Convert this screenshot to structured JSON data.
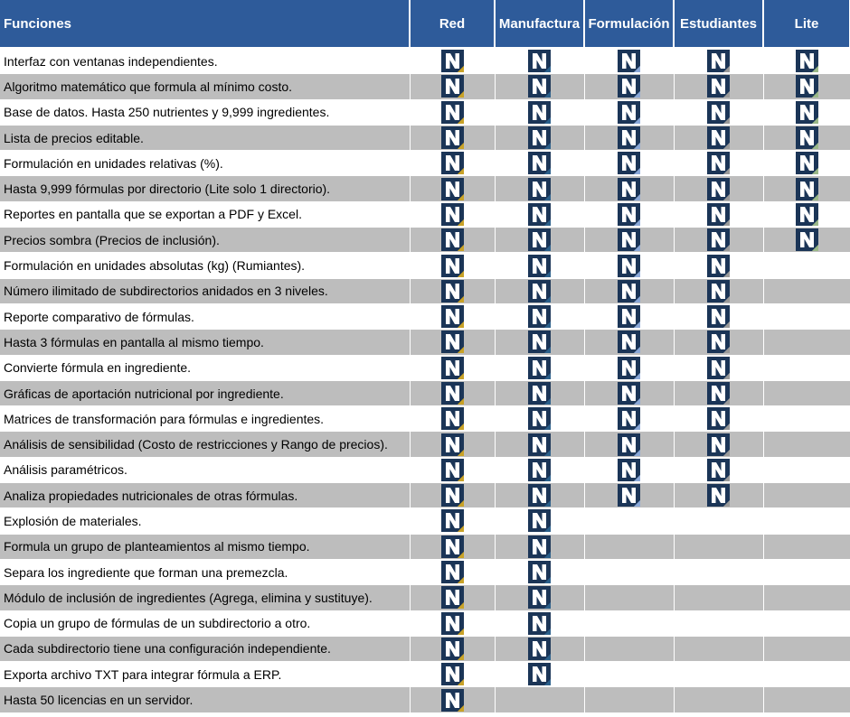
{
  "header": {
    "features_label": "Funciones",
    "packages": [
      "Red",
      "Manufactura",
      "Formulación",
      "Estudiantes",
      "Lite"
    ]
  },
  "colors": {
    "header_bg": "#2e5b9a",
    "row_alt_bg": "#bdbdbd",
    "icon_dark": "#1b3557",
    "icon_accent": [
      "#c9a227",
      "#2a5f8a",
      "#8aa8d8",
      "#9a9a9a",
      "#9bb888"
    ]
  },
  "icons": {
    "check": "n-logo-icon"
  },
  "rows": [
    {
      "label": "Interfaz con ventanas independientes.",
      "included": [
        true,
        true,
        true,
        true,
        true
      ]
    },
    {
      "label": "Algoritmo matemático que formula al mínimo costo.",
      "included": [
        true,
        true,
        true,
        true,
        true
      ]
    },
    {
      "label": "Base de datos. Hasta 250 nutrientes y 9,999 ingredientes.",
      "included": [
        true,
        true,
        true,
        true,
        true
      ]
    },
    {
      "label": "Lista de precios editable.",
      "included": [
        true,
        true,
        true,
        true,
        true
      ]
    },
    {
      "label": "Formulación en unidades relativas (%).",
      "included": [
        true,
        true,
        true,
        true,
        true
      ]
    },
    {
      "label": "Hasta 9,999 fórmulas por directorio (Lite solo 1 directorio).",
      "included": [
        true,
        true,
        true,
        true,
        true
      ]
    },
    {
      "label": "Reportes en pantalla que se exportan a PDF y Excel.",
      "included": [
        true,
        true,
        true,
        true,
        true
      ]
    },
    {
      "label": "Precios sombra (Precios de inclusión).",
      "included": [
        true,
        true,
        true,
        true,
        true
      ]
    },
    {
      "label": "Formulación en unidades absolutas (kg) (Rumiantes).",
      "included": [
        true,
        true,
        true,
        true,
        false
      ]
    },
    {
      "label": "Número ilimitado de subdirectorios anidados en 3 niveles.",
      "included": [
        true,
        true,
        true,
        true,
        false
      ]
    },
    {
      "label": "Reporte comparativo de fórmulas.",
      "included": [
        true,
        true,
        true,
        true,
        false
      ]
    },
    {
      "label": "Hasta 3 fórmulas en pantalla al mismo tiempo.",
      "included": [
        true,
        true,
        true,
        true,
        false
      ]
    },
    {
      "label": "Convierte fórmula en ingrediente.",
      "included": [
        true,
        true,
        true,
        true,
        false
      ]
    },
    {
      "label": "Gráficas de aportación nutricional por ingrediente.",
      "included": [
        true,
        true,
        true,
        true,
        false
      ]
    },
    {
      "label": "Matrices de transformación para fórmulas e ingredientes.",
      "included": [
        true,
        true,
        true,
        true,
        false
      ]
    },
    {
      "label": "Análisis de sensibilidad (Costo de restricciones y Rango de precios).",
      "included": [
        true,
        true,
        true,
        true,
        false
      ]
    },
    {
      "label": "Análisis paramétricos.",
      "included": [
        true,
        true,
        true,
        true,
        false
      ]
    },
    {
      "label": "Analiza propiedades nutricionales de otras fórmulas.",
      "included": [
        true,
        true,
        true,
        true,
        false
      ]
    },
    {
      "label": "Explosión de materiales.",
      "included": [
        true,
        true,
        false,
        false,
        false
      ]
    },
    {
      "label": "Formula un grupo de planteamientos al mismo tiempo.",
      "included": [
        true,
        true,
        false,
        false,
        false
      ]
    },
    {
      "label": "Separa los ingrediente que forman una premezcla.",
      "included": [
        true,
        true,
        false,
        false,
        false
      ]
    },
    {
      "label": "Módulo de inclusión de ingredientes (Agrega, elimina y sustituye).",
      "included": [
        true,
        true,
        false,
        false,
        false
      ]
    },
    {
      "label": "Copia un grupo de fórmulas de un subdirectorio a otro.",
      "included": [
        true,
        true,
        false,
        false,
        false
      ]
    },
    {
      "label": "Cada subdirectorio tiene una configuración independiente.",
      "included": [
        true,
        true,
        false,
        false,
        false
      ]
    },
    {
      "label": "Exporta archivo TXT para integrar fórmula a ERP.",
      "included": [
        true,
        true,
        false,
        false,
        false
      ]
    },
    {
      "label": "Hasta 50 licencias en un servidor.",
      "included": [
        true,
        false,
        false,
        false,
        false
      ]
    }
  ]
}
